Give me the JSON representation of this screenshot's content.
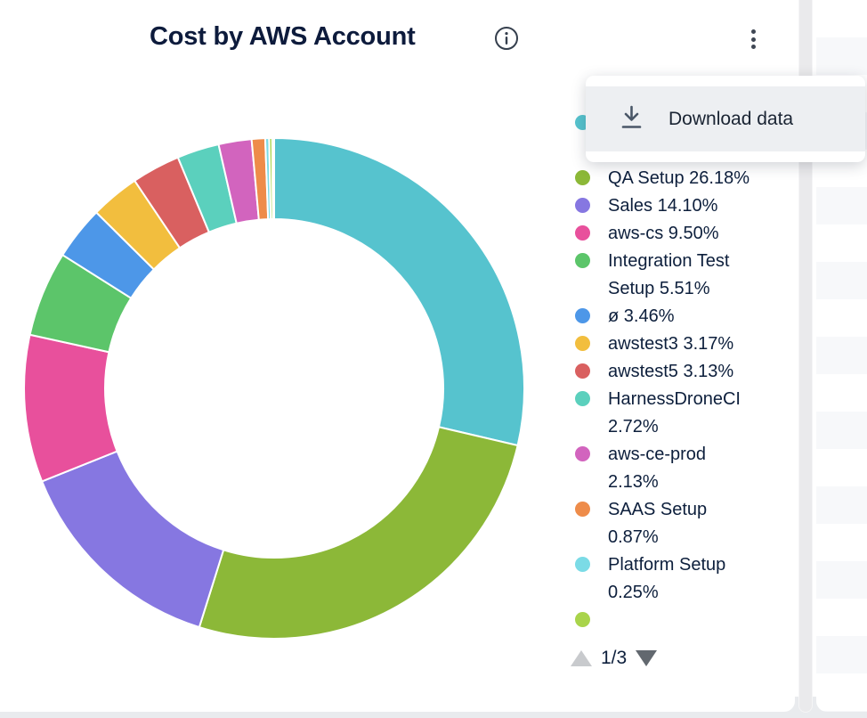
{
  "header": {
    "title": "Cost by AWS Account",
    "info_icon": "info-circle-icon",
    "kebab_icon": "kebab-menu-icon"
  },
  "menu": {
    "items": [
      {
        "icon": "download-icon",
        "label": "Download data"
      }
    ]
  },
  "legend": {
    "pagination": {
      "page_label": "1/3",
      "up_icon": "triangle-up-icon",
      "down_icon": "triangle-down-icon"
    }
  },
  "chart_data": {
    "type": "pie",
    "variant": "donut",
    "title": "Cost by AWS Account",
    "unit": "%",
    "legend_position": "right",
    "start_angle_deg": 0,
    "direction": "clockwise",
    "segments": [
      {
        "label": "",
        "pct_label": "",
        "value": 28.66,
        "color": "#56C3CE",
        "in_legend": true,
        "label_hidden_behind_menu": true
      },
      {
        "label": "QA Setup",
        "pct_label": "26.18%",
        "value": 26.18,
        "color": "#8CB838",
        "in_legend": true
      },
      {
        "label": "Sales",
        "pct_label": "14.10%",
        "value": 14.1,
        "color": "#8677E1",
        "in_legend": true
      },
      {
        "label": "aws-cs",
        "pct_label": "9.50%",
        "value": 9.5,
        "color": "#E8509C",
        "in_legend": true
      },
      {
        "label": "Integration Test Setup",
        "pct_label": "5.51%",
        "value": 5.51,
        "color": "#5CC56A",
        "in_legend": true
      },
      {
        "label": "ø",
        "pct_label": "3.46%",
        "value": 3.46,
        "color": "#4D97E8",
        "in_legend": true
      },
      {
        "label": "awstest3",
        "pct_label": "3.17%",
        "value": 3.17,
        "color": "#F2BE3E",
        "in_legend": true
      },
      {
        "label": "awstest5",
        "pct_label": "3.13%",
        "value": 3.13,
        "color": "#D96060",
        "in_legend": true
      },
      {
        "label": "HarnessDroneCI",
        "pct_label": "2.72%",
        "value": 2.72,
        "color": "#5BD0BD",
        "in_legend": true
      },
      {
        "label": "aws-ce-prod",
        "pct_label": "2.13%",
        "value": 2.13,
        "color": "#D264BE",
        "in_legend": true
      },
      {
        "label": "SAAS Setup",
        "pct_label": "0.87%",
        "value": 0.87,
        "color": "#EE8C4A",
        "in_legend": true
      },
      {
        "label": "Platform Setup",
        "pct_label": "0.25%",
        "value": 0.25,
        "color": "#7BDBE6",
        "in_legend": true
      },
      {
        "label": "",
        "pct_label": "",
        "value": 0.2,
        "color": "#A9D44B",
        "in_legend": "partial"
      },
      {
        "label": "",
        "pct_label": "",
        "value": 0.12,
        "color": "#4EC9D4",
        "in_legend": false
      }
    ]
  }
}
